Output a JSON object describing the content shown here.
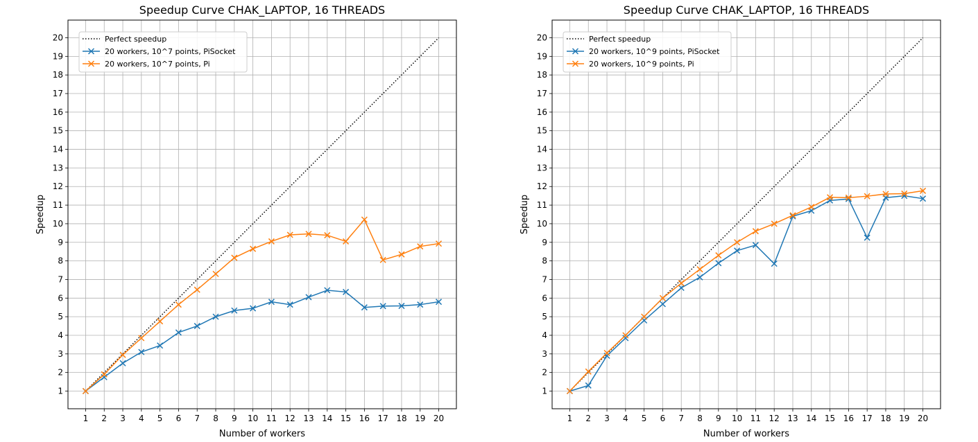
{
  "colors": {
    "pi_socket": "#1f77b4",
    "pi": "#ff7f0e",
    "perfect": "#000000",
    "grid": "#b0b0b0"
  },
  "chart_data": [
    {
      "type": "line",
      "title": "Speedup Curve CHAK_LAPTOP, 16 THREADS",
      "xlabel": "Number of workers",
      "ylabel": "Speedup",
      "xlim": [
        0.05,
        20.95
      ],
      "ylim": [
        0.05,
        20.95
      ],
      "x_ticks": [
        1,
        2,
        3,
        4,
        5,
        6,
        7,
        8,
        9,
        10,
        11,
        12,
        13,
        14,
        15,
        16,
        17,
        18,
        19,
        20
      ],
      "y_ticks": [
        1,
        2,
        3,
        4,
        5,
        6,
        7,
        8,
        9,
        10,
        11,
        12,
        13,
        14,
        15,
        16,
        17,
        18,
        19,
        20
      ],
      "grid": true,
      "legend_position": "upper left",
      "x": [
        1,
        2,
        3,
        4,
        5,
        6,
        7,
        8,
        9,
        10,
        11,
        12,
        13,
        14,
        15,
        16,
        17,
        18,
        19,
        20
      ],
      "series": [
        {
          "name": "Perfect speedup",
          "style": "dotted",
          "marker": "none",
          "color_key": "perfect",
          "values": [
            1,
            2,
            3,
            4,
            5,
            6,
            7,
            8,
            9,
            10,
            11,
            12,
            13,
            14,
            15,
            16,
            17,
            18,
            19,
            20
          ]
        },
        {
          "name": "20 workers, 10^7 points, PiSocket",
          "style": "solid",
          "marker": "x",
          "color_key": "pi_socket",
          "values": [
            1.0,
            1.75,
            2.5,
            3.1,
            3.45,
            4.15,
            4.5,
            5.0,
            5.33,
            5.45,
            5.8,
            5.65,
            6.05,
            6.42,
            6.33,
            5.5,
            5.57,
            5.58,
            5.65,
            5.8
          ]
        },
        {
          "name": "20 workers, 10^7 points, Pi",
          "style": "solid",
          "marker": "x",
          "color_key": "pi",
          "values": [
            1.0,
            1.9,
            2.95,
            3.85,
            4.75,
            5.65,
            6.45,
            7.3,
            8.17,
            8.65,
            9.05,
            9.4,
            9.45,
            9.38,
            9.05,
            10.22,
            8.05,
            8.35,
            8.78,
            8.93
          ]
        }
      ]
    },
    {
      "type": "line",
      "title": "Speedup Curve CHAK_LAPTOP, 16 THREADS",
      "xlabel": "Number of workers",
      "ylabel": "Speedup",
      "xlim": [
        0.05,
        20.95
      ],
      "ylim": [
        0.05,
        20.95
      ],
      "x_ticks": [
        1,
        2,
        3,
        4,
        5,
        6,
        7,
        8,
        9,
        10,
        11,
        12,
        13,
        14,
        15,
        16,
        17,
        18,
        19,
        20
      ],
      "y_ticks": [
        1,
        2,
        3,
        4,
        5,
        6,
        7,
        8,
        9,
        10,
        11,
        12,
        13,
        14,
        15,
        16,
        17,
        18,
        19,
        20
      ],
      "grid": true,
      "legend_position": "upper left",
      "x": [
        1,
        2,
        3,
        4,
        5,
        6,
        7,
        8,
        9,
        10,
        11,
        12,
        13,
        14,
        15,
        16,
        17,
        18,
        19,
        20
      ],
      "series": [
        {
          "name": "Perfect speedup",
          "style": "dotted",
          "marker": "none",
          "color_key": "perfect",
          "values": [
            1,
            2,
            3,
            4,
            5,
            6,
            7,
            8,
            9,
            10,
            11,
            12,
            13,
            14,
            15,
            16,
            17,
            18,
            19,
            20
          ]
        },
        {
          "name": "20 workers, 10^9 points, PiSocket",
          "style": "solid",
          "marker": "x",
          "color_key": "pi_socket",
          "values": [
            1.0,
            1.3,
            2.9,
            3.85,
            4.8,
            5.68,
            6.55,
            7.12,
            7.88,
            8.55,
            8.85,
            7.85,
            10.4,
            10.7,
            11.25,
            11.33,
            9.25,
            11.4,
            11.5,
            11.35
          ]
        },
        {
          "name": "20 workers, 10^9 points, Pi",
          "style": "solid",
          "marker": "x",
          "color_key": "pi",
          "values": [
            1.0,
            2.05,
            3.05,
            4.0,
            5.0,
            6.0,
            6.8,
            7.55,
            8.3,
            9.0,
            9.6,
            10.0,
            10.45,
            10.9,
            11.42,
            11.4,
            11.48,
            11.6,
            11.62,
            11.77
          ]
        }
      ]
    }
  ]
}
